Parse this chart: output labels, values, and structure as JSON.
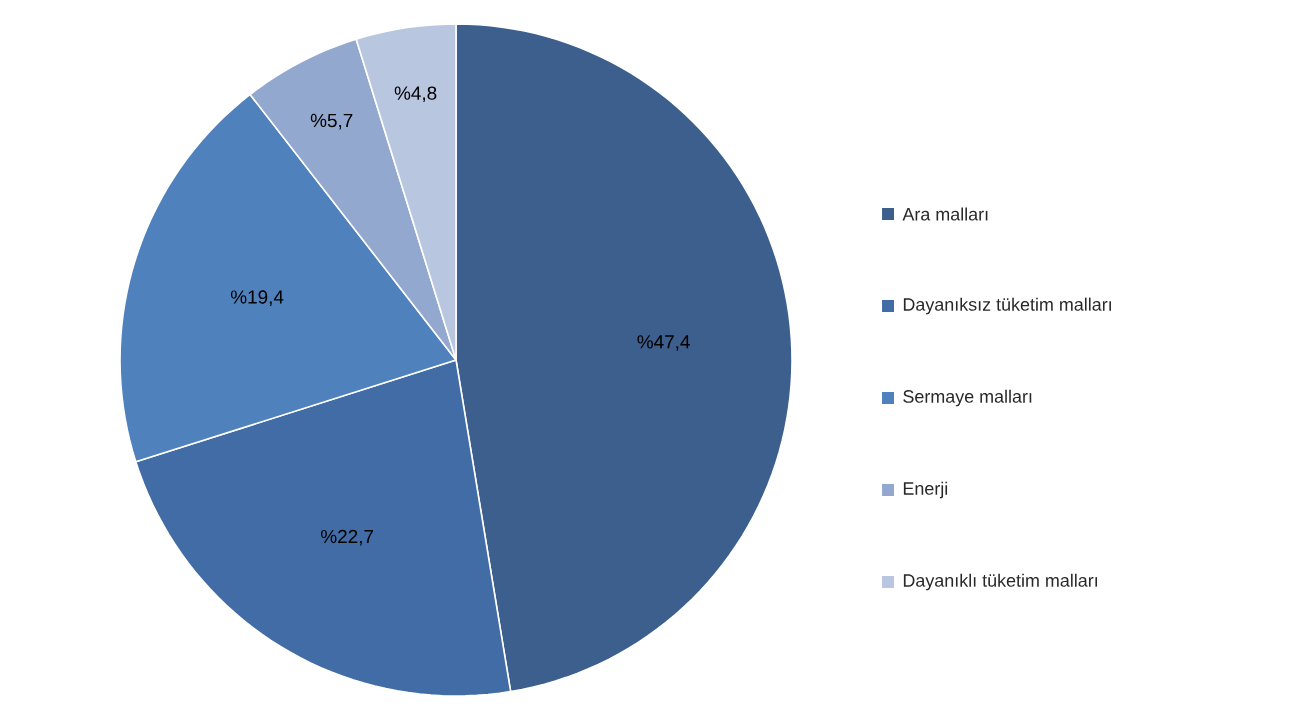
{
  "chart_data": {
    "type": "pie",
    "categories": [
      "Ara malları",
      "Dayanıksız tüketim malları",
      "Sermaye malları",
      "Enerji",
      "Dayanıklı tüketim malları"
    ],
    "values": [
      47.4,
      22.7,
      19.4,
      5.7,
      4.8
    ],
    "value_labels": [
      "%47,4",
      "%22,7",
      "%19,4",
      "%5,7",
      "%4,8"
    ],
    "colors": [
      "#3c5f8e",
      "#416ca6",
      "#4f81bd",
      "#93a8cf",
      "#b9c6e0"
    ],
    "legend": "right"
  }
}
